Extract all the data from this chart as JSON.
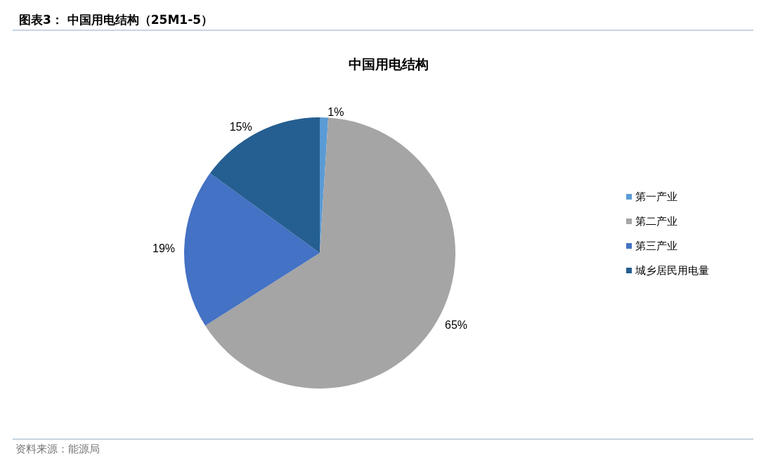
{
  "chart_data": {
    "type": "pie",
    "title": "图表3： 中国用电结构（25M1-5）",
    "subtitle": "中国用电结构",
    "categories": [
      "第一产业",
      "第二产业",
      "第三产业",
      "城乡居民用电量"
    ],
    "values": [
      1,
      65,
      19,
      15
    ],
    "value_labels": [
      "1%",
      "65%",
      "19%",
      "15%"
    ],
    "colors": [
      "#5b9bd5",
      "#a5a5a5",
      "#4472c4",
      "#255e91"
    ],
    "legend": "right",
    "annotations": [
      "资料来源：能源局"
    ]
  }
}
